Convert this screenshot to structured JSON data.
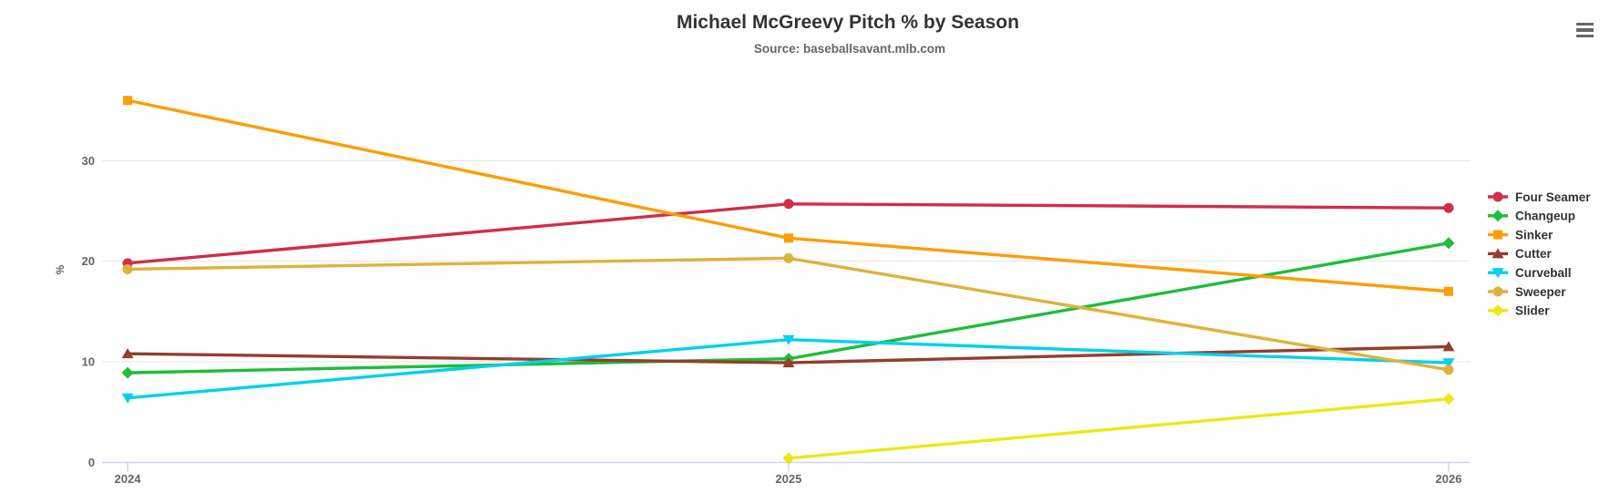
{
  "chart": {
    "title": "Michael McGreevy Pitch % by Season",
    "subtitle": "Source: baseballsavant.mlb.com",
    "icons": {
      "context_menu": "hamburger-menu-icon"
    }
  },
  "chart_data": {
    "type": "line",
    "title": "Michael McGreevy Pitch % by Season",
    "subtitle": "Source: baseballsavant.mlb.com",
    "xlabel": "",
    "ylabel": "%",
    "categories": [
      "2024",
      "2025",
      "2026"
    ],
    "series": [
      {
        "name": "Four Seamer",
        "color": "#D22D49",
        "marker": "circle",
        "values": [
          19.8,
          25.7,
          25.3
        ]
      },
      {
        "name": "Changeup",
        "color": "#1DBE3A",
        "marker": "diamond",
        "values": [
          8.9,
          10.3,
          21.8
        ]
      },
      {
        "name": "Sinker",
        "color": "#FE9D00",
        "marker": "square",
        "values": [
          36.0,
          22.3,
          17.0
        ]
      },
      {
        "name": "Cutter",
        "color": "#933F2C",
        "marker": "triangle-up",
        "values": [
          10.8,
          9.9,
          11.5
        ]
      },
      {
        "name": "Curveball",
        "color": "#00D1ED",
        "marker": "triangle-down",
        "values": [
          6.4,
          12.2,
          9.9
        ]
      },
      {
        "name": "Sweeper",
        "color": "#DDB33A",
        "marker": "circle",
        "values": [
          19.2,
          20.3,
          9.2
        ]
      },
      {
        "name": "Slider",
        "color": "#EEE716",
        "marker": "diamond",
        "values": [
          null,
          0.4,
          6.3
        ]
      }
    ],
    "yticks": [
      0,
      10,
      20,
      30
    ],
    "ylim": [
      0,
      38.7
    ],
    "grid": true,
    "legend_position": "right",
    "colors": {
      "grid_line": "#e6e6e6",
      "axis_line": "#ccd6eb",
      "axis_label": "#666666",
      "legend_text": "#333333",
      "title_text": "#333333",
      "subtitle_text": "#666666",
      "menu_icon": "#666666",
      "background": "#ffffff"
    }
  }
}
